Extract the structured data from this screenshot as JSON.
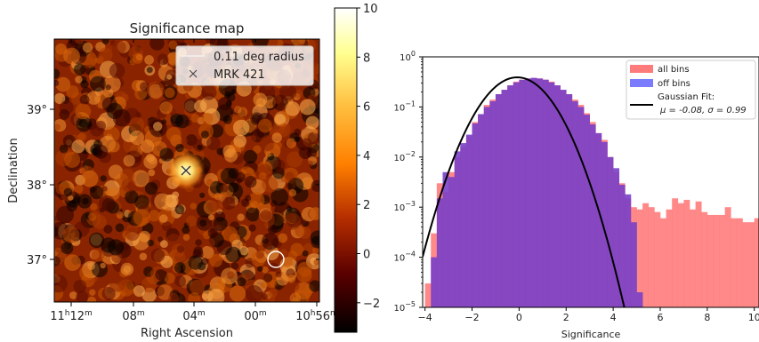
{
  "chart_data": [
    {
      "type": "heatmap",
      "title": "Significance map",
      "xlabel": "Right Ascension",
      "ylabel": "Declination",
      "x_ticks": [
        {
          "main": "11",
          "sup1": "h",
          "mid": "12",
          "sup2": "m"
        },
        {
          "main": "08",
          "sup1": "",
          "mid": "",
          "sup2": "m"
        },
        {
          "main": "04",
          "sup1": "",
          "mid": "",
          "sup2": "m"
        },
        {
          "main": "00",
          "sup1": "",
          "mid": "",
          "sup2": "m"
        },
        {
          "main": "10",
          "sup1": "h",
          "mid": "56",
          "sup2": "m"
        }
      ],
      "y_ticks": [
        "39°",
        "38°",
        "37°"
      ],
      "colorbar": {
        "min": -3.2,
        "max": 10,
        "ticks": [
          -2,
          0,
          2,
          4,
          6,
          8,
          10
        ],
        "tick_labels": [
          "−2",
          "0",
          "2",
          "4",
          "6",
          "8",
          "10"
        ],
        "colormap": "afmhot"
      },
      "legend": [
        {
          "label": "0.11 deg radius",
          "marker": "line"
        },
        {
          "label": "MRK 421",
          "marker": "x"
        }
      ],
      "source": {
        "name": "MRK 421",
        "ra_label": "11h04m",
        "dec_deg": 38.2,
        "peak_significance": 9
      }
    },
    {
      "type": "bar",
      "xlabel": "Significance",
      "ylabel": "",
      "xlim": [
        -4.1,
        10.2
      ],
      "ylim": [
        1e-05,
        1
      ],
      "yscale": "log",
      "x_ticks": [
        -4,
        -2,
        0,
        2,
        4,
        6,
        8,
        10
      ],
      "x_tick_labels": [
        "−4",
        "−2",
        "0",
        "2",
        "4",
        "6",
        "8",
        "10"
      ],
      "y_ticks": [
        {
          "value": 1,
          "exp": "0"
        },
        {
          "value": 0.1,
          "exp": "−1"
        },
        {
          "value": 0.01,
          "exp": "−2"
        },
        {
          "value": 0.001,
          "exp": "−3"
        },
        {
          "value": 0.0001,
          "exp": "−4"
        },
        {
          "value": 1e-05,
          "exp": "−5"
        }
      ],
      "legend_position": "upper right",
      "legend": [
        {
          "label": "all bins",
          "color": "#ff7b7b"
        },
        {
          "label": "off bins",
          "color": "#7b7bff"
        },
        {
          "label": "Gaussian Fit:",
          "sub": "μ = -0.08, σ = 0.99",
          "color": "#000000"
        }
      ],
      "bin_width": 0.25,
      "series": [
        {
          "name": "all bins",
          "color": "#ff7b7b",
          "x_start": -4.0,
          "values": [
            3e-05,
            0.0003,
            0.003,
            0.002,
            0.005,
            0.01,
            0.016,
            0.026,
            0.05,
            0.07,
            0.11,
            0.14,
            0.18,
            0.22,
            0.27,
            0.32,
            0.35,
            0.37,
            0.38,
            0.37,
            0.35,
            0.32,
            0.27,
            0.22,
            0.18,
            0.14,
            0.11,
            0.075,
            0.05,
            0.03,
            0.022,
            0.01,
            0.005,
            0.003,
            0.0015,
            0.001,
            0.0009,
            0.0012,
            0.001,
            0.0008,
            0.0006,
            0.0009,
            0.0015,
            0.0012,
            0.0014,
            0.0009,
            0.0013,
            0.0008,
            0.0007,
            0.0007,
            0.0007,
            0.001,
            0.0006,
            0.0006,
            0.0005,
            0.0005,
            0.0006,
            0.0005,
            0.0003,
            0.0003,
            0.0005
          ]
        },
        {
          "name": "off bins",
          "color": "#7b7bff",
          "x_start": -4.0,
          "values": [
            1e-05,
            0.0001,
            0.0015,
            0.005,
            0.004,
            0.013,
            0.019,
            0.028,
            0.047,
            0.072,
            0.1,
            0.13,
            0.18,
            0.22,
            0.27,
            0.31,
            0.35,
            0.37,
            0.38,
            0.37,
            0.35,
            0.31,
            0.27,
            0.22,
            0.18,
            0.13,
            0.1,
            0.07,
            0.045,
            0.03,
            0.02,
            0.01,
            0.006,
            0.0028,
            0.0018,
            0.0005,
            2e-05
          ]
        },
        {
          "name": "Gaussian Fit:",
          "type": "line",
          "mu": -0.08,
          "sigma": 0.99,
          "amplitude": 0.39,
          "color": "#000000"
        }
      ]
    }
  ]
}
